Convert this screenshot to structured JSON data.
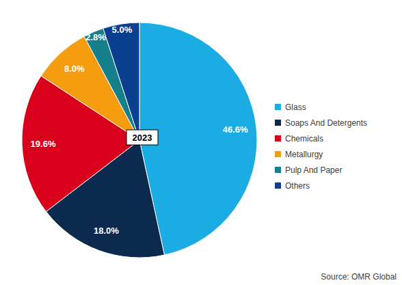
{
  "chart_data": {
    "type": "pie",
    "title": "2023",
    "categories": [
      "Glass",
      "Soaps And Detergents",
      "Chemicals",
      "Metallurgy",
      "Pulp And Paper",
      "Others"
    ],
    "values": [
      46.6,
      18.0,
      19.6,
      8.0,
      2.8,
      5.0
    ],
    "value_labels": [
      "46.6%",
      "18.0%",
      "19.6%",
      "8.0%",
      "2.8%",
      "5.0%"
    ],
    "colors": [
      "#1aace3",
      "#0c2a4d",
      "#d9001b",
      "#f59c0f",
      "#167f8c",
      "#0b3f8f"
    ],
    "data_labels": true,
    "legend": "right",
    "annotations": [
      "Source: OMR Global"
    ]
  }
}
